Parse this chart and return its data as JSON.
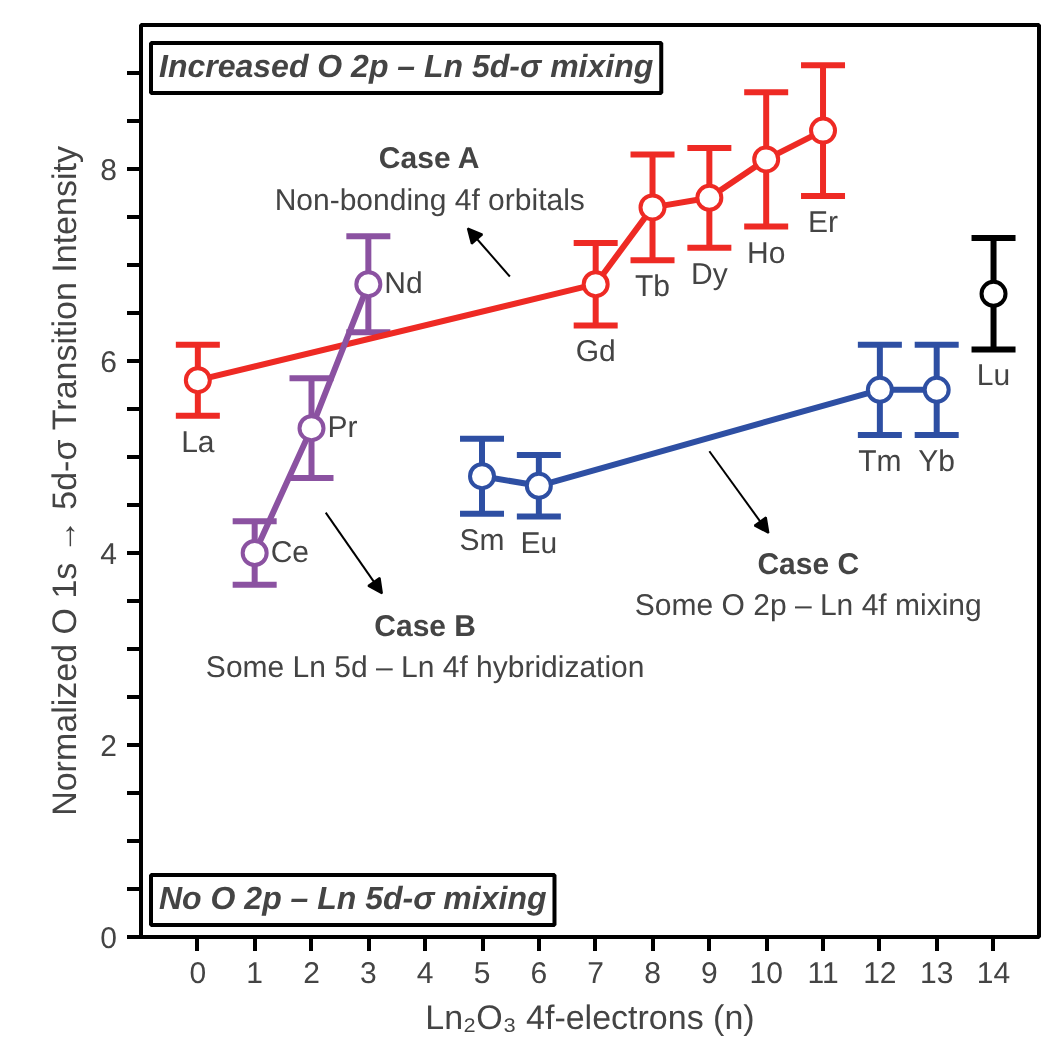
{
  "chart_data": {
    "type": "scatter",
    "xlabel": "Ln₂O₃ 4f-electrons (n)",
    "ylabel": "Normalized O 1s → 5d-σ Transition Intensity",
    "xlim": [
      -1,
      14.8
    ],
    "xticks": [
      0,
      1,
      2,
      3,
      4,
      5,
      6,
      7,
      8,
      9,
      10,
      11,
      12,
      13,
      14
    ],
    "ylim": [
      0,
      9.5
    ],
    "yticks": [
      0,
      {
        "value": 0.5,
        "label": null
      },
      2,
      {
        "value": 1,
        "label": null
      },
      {
        "value": 1.5,
        "label": null
      },
      {
        "value": 2.5,
        "label": null
      },
      {
        "value": 3,
        "label": null
      },
      {
        "value": 3.5,
        "label": null
      },
      4,
      {
        "value": 4.5,
        "label": null
      },
      {
        "value": 5,
        "label": null
      },
      {
        "value": 5.5,
        "label": null
      },
      6,
      {
        "value": 6.5,
        "label": null
      },
      {
        "value": 7,
        "label": null
      },
      {
        "value": 7.5,
        "label": null
      },
      8,
      {
        "value": 8.5,
        "label": null
      },
      {
        "value": 9,
        "label": null
      }
    ],
    "grid": false,
    "marker": "circle",
    "line_style": "solid",
    "series": [
      {
        "type": "line",
        "color": "#ee2a24",
        "x": [
          0,
          7,
          8,
          9,
          10,
          11
        ],
        "values": [
          5.8,
          6.8,
          7.6,
          7.7,
          8.1,
          8.4
        ],
        "errors": [
          0.37,
          0.43,
          0.55,
          0.52,
          0.7,
          0.68
        ]
      },
      {
        "type": "line",
        "color": "#8b52a1",
        "x": [
          1,
          2,
          3
        ],
        "values": [
          4.0,
          5.3,
          6.8
        ],
        "errors": [
          0.33,
          0.52,
          0.5
        ]
      },
      {
        "type": "line",
        "color": "#2e4fa3",
        "x": [
          5,
          6,
          12,
          13
        ],
        "values": [
          4.8,
          4.7,
          5.7,
          5.7
        ],
        "errors": [
          0.39,
          0.32,
          0.47,
          0.47
        ]
      },
      {
        "color": "#000000",
        "x": [
          14
        ],
        "values": [
          6.7
        ],
        "errors": [
          0.58
        ]
      }
    ],
    "annotations": [
      "Increased O 2p – Ln 5d-σ mixing",
      "No O 2p – Ln 5d-σ mixing",
      {
        "text": "La",
        "x": 0,
        "y": 5.8
      },
      {
        "text": "Gd",
        "x": 7,
        "y": 6.8
      },
      {
        "text": "Tb",
        "x": 8,
        "y": 7.6
      },
      {
        "text": "Dy",
        "x": 9,
        "y": 7.7
      },
      {
        "text": "Ho",
        "x": 10,
        "y": 8.1
      },
      {
        "text": "Er",
        "x": 11,
        "y": 8.4
      },
      {
        "text": "Lu",
        "x": 14,
        "y": 6.7
      },
      {
        "text": "Nd",
        "x": 3,
        "y": 6.8
      },
      {
        "text": "Pr",
        "x": 2,
        "y": 5.3
      },
      {
        "text": "Ce",
        "x": 1,
        "y": 4.0
      },
      {
        "text": "Sm",
        "x": 5,
        "y": 4.8
      },
      {
        "text": "Eu",
        "x": 6,
        "y": 4.7
      },
      {
        "text": "Tm",
        "x": 12,
        "y": 5.7
      },
      {
        "text": "Yb",
        "x": 13,
        "y": 5.7
      },
      "Case A",
      "Non-bonding 4f orbitals",
      "Case B",
      "Some Ln 5d – Ln 4f hybridization",
      "Case C",
      "Some O 2p – Ln 4f mixing"
    ]
  }
}
